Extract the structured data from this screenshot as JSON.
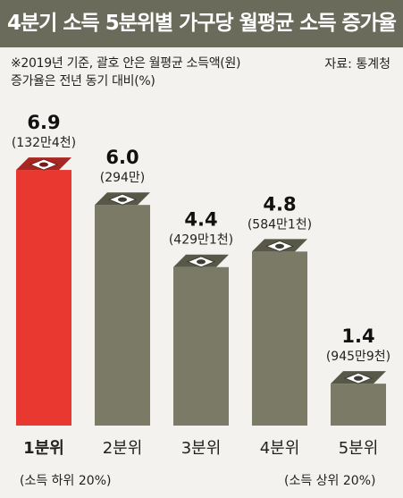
{
  "title": "4분기 소득 5분위별 가구당 월평균 소득 증가율",
  "note_line1": "※2019년 기준, 괄호 안은 월평균 소득액(원)",
  "note_line2": "증가율은 전년 동기 대비(%)",
  "source": "자료: 통계청",
  "colors": {
    "highlight": "#e8382f",
    "bar": "#7a7a66",
    "title_bg": "#6b6b5c",
    "background": "#f3f2ee"
  },
  "chart_data": {
    "type": "bar",
    "categories": [
      "1분위",
      "2분위",
      "3분위",
      "4분위",
      "5분위"
    ],
    "values": [
      6.9,
      6.0,
      4.4,
      4.8,
      1.4
    ],
    "value_labels": [
      "6.9",
      "6.0",
      "4.4",
      "4.8",
      "1.4"
    ],
    "amount_labels": [
      "(132만4천)",
      "(294만)",
      "(429만1천)",
      "(584만1천)",
      "(945만9천)"
    ],
    "category_notes": {
      "first": "(소득 하위 20%)",
      "last": "(소득 상위 20%)"
    },
    "highlight_index": 0,
    "ylim": [
      0,
      7.5
    ],
    "grid": false,
    "legend": "none"
  }
}
